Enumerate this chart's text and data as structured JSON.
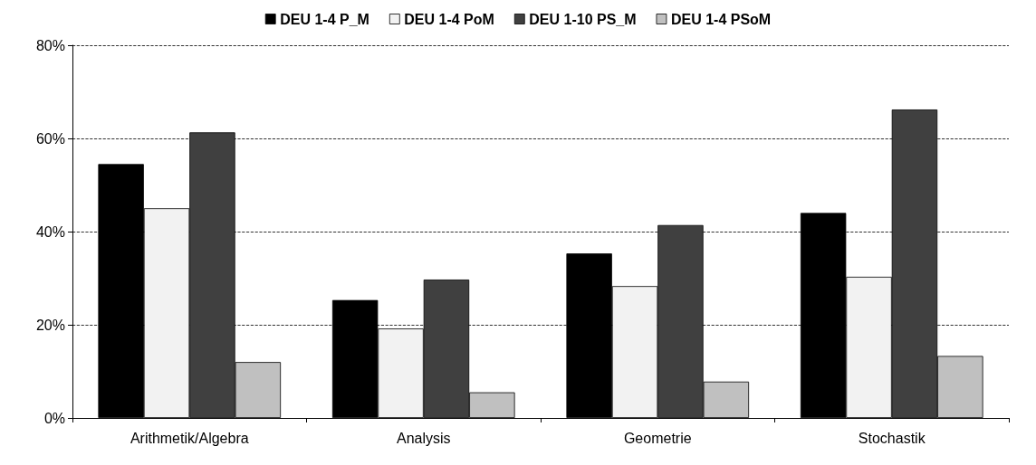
{
  "chart_data": {
    "type": "bar",
    "categories": [
      "Arithmetik/Algebra",
      "Analysis",
      "Geometrie",
      "Stochastik"
    ],
    "series": [
      {
        "name": "DEU 1-4 P_M",
        "color": "#000000",
        "values": [
          54.5,
          25.3,
          35.3,
          44
        ]
      },
      {
        "name": "DEU 1-4 PoM",
        "color": "#f2f2f2",
        "values": [
          45,
          19.2,
          28.3,
          30.3
        ]
      },
      {
        "name": "DEU 1-10 PS_M",
        "color": "#404040",
        "values": [
          61.3,
          29.7,
          41.4,
          66.2
        ]
      },
      {
        "name": "DEU 1-4 PSoM",
        "color": "#c0c0c0",
        "values": [
          12,
          5.5,
          7.8,
          13.3
        ]
      }
    ],
    "ylim": [
      0,
      80
    ],
    "yticks": [
      {
        "value": 0,
        "label": "0%"
      },
      {
        "value": 20,
        "label": "20%"
      },
      {
        "value": 40,
        "label": "40%"
      },
      {
        "value": 60,
        "label": "60%"
      },
      {
        "value": 80,
        "label": "80%"
      }
    ],
    "grid": "y",
    "legend": "top",
    "line_style": "dashed"
  }
}
